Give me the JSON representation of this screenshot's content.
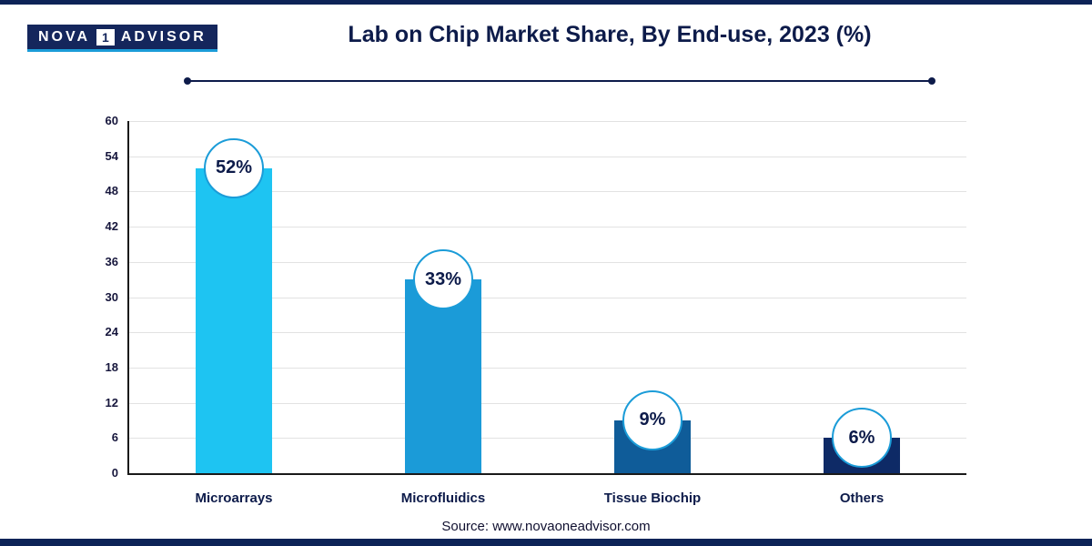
{
  "page": {
    "title": "Lab on Chip Market Share, By End-use, 2023 (%)",
    "source": "Source: www.novaoneadvisor.com"
  },
  "logo": {
    "name_left": "NOVA",
    "badge": "1",
    "name_right": "ADVISOR"
  },
  "colors": {
    "accent_navy": "#0d2357",
    "title_navy": "#0d1b4a",
    "badge_border_blue": "#1b9cd8",
    "bar_colors": [
      "#1ec4f2",
      "#1b9bd8",
      "#0f5c99",
      "#0e2a66"
    ]
  },
  "chart_data": {
    "type": "bar",
    "title": "Lab on Chip Market Share, By End-use, 2023 (%)",
    "categories": [
      "Microarrays",
      "Microfluidics",
      "Tissue Biochip",
      "Others"
    ],
    "values": [
      52,
      33,
      9,
      6
    ],
    "value_labels": [
      "52%",
      "33%",
      "9%",
      "6%"
    ],
    "xlabel": "",
    "ylabel": "",
    "ylim": [
      0,
      60
    ],
    "yticks": [
      0,
      6,
      12,
      18,
      24,
      30,
      36,
      42,
      48,
      54,
      60
    ],
    "grid": true,
    "legend": "none"
  }
}
